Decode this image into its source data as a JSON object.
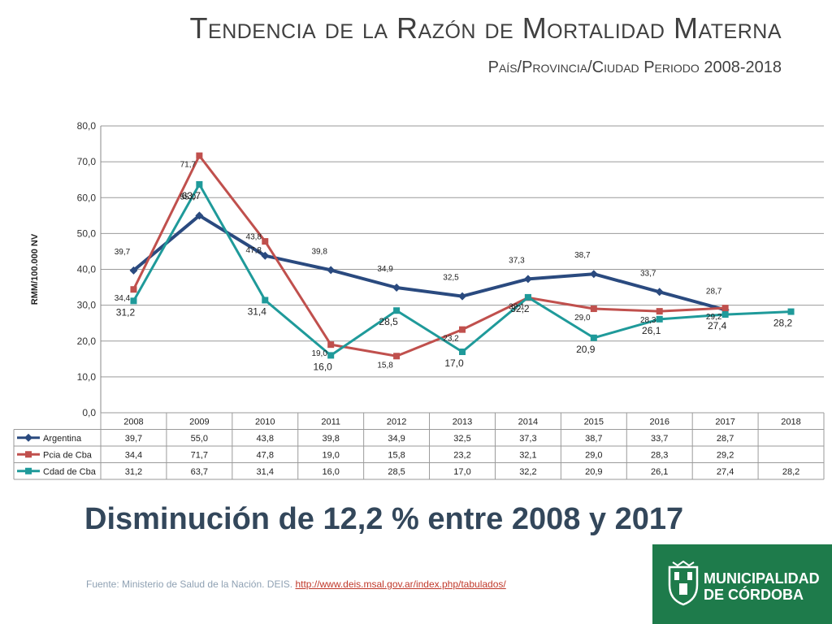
{
  "header": {
    "title": "Tendencia de la Razón de Mortalidad Materna",
    "subtitle": "País/Provincia/Ciudad Periodo 2008-2018"
  },
  "headline": "Disminución de 12,2 % entre 2008 y 2017",
  "footer": {
    "source_text": "Fuente: Ministerio de Salud de la Nación. DEIS. ",
    "source_link": "http://www.deis.msal.gov.ar/index.php/tabulados/"
  },
  "logo": {
    "line1": "MUNICIPALIDAD",
    "line2": "DE CÓRDOBA",
    "brand_color": "#1e7b4b"
  },
  "chart_data": {
    "type": "line",
    "ylabel": "RMM/100.000 NV",
    "ylim": [
      0,
      80
    ],
    "yticks": [
      "0,0",
      "10,0",
      "20,0",
      "30,0",
      "40,0",
      "50,0",
      "60,0",
      "70,0",
      "80,0"
    ],
    "categories": [
      "2008",
      "2009",
      "2010",
      "2011",
      "2012",
      "2013",
      "2014",
      "2015",
      "2016",
      "2017",
      "2018"
    ],
    "grid": true,
    "data_table": true,
    "series": [
      {
        "name": "Argentina",
        "color": "#2a4a7f",
        "marker": "diamond",
        "values": [
          39.7,
          55.0,
          43.8,
          39.8,
          34.9,
          32.5,
          37.3,
          38.7,
          33.7,
          28.7,
          null
        ],
        "labels": [
          "39,7",
          "55,0",
          "43,8",
          "39,8",
          "34,9",
          "32,5",
          "37,3",
          "38,7",
          "33,7",
          "28,7",
          ""
        ]
      },
      {
        "name": "Pcia de Cba",
        "color": "#c0504d",
        "marker": "square",
        "values": [
          34.4,
          71.7,
          47.8,
          19.0,
          15.8,
          23.2,
          32.1,
          29.0,
          28.3,
          29.2,
          null
        ],
        "labels": [
          "34,4",
          "71,7",
          "47,8",
          "19,0",
          "15,8",
          "23,2",
          "32,1",
          "29,0",
          "28,3",
          "29,2",
          ""
        ]
      },
      {
        "name": "Cdad de Cba",
        "color": "#1f9a9a",
        "marker": "square",
        "values": [
          31.2,
          63.7,
          31.4,
          16.0,
          28.5,
          17.0,
          32.2,
          20.9,
          26.1,
          27.4,
          28.2
        ],
        "labels": [
          "31,2",
          "63,7",
          "31,4",
          "16,0",
          "28,5",
          "17,0",
          "32,2",
          "20,9",
          "26,1",
          "27,4",
          "28,2"
        ]
      }
    ]
  }
}
